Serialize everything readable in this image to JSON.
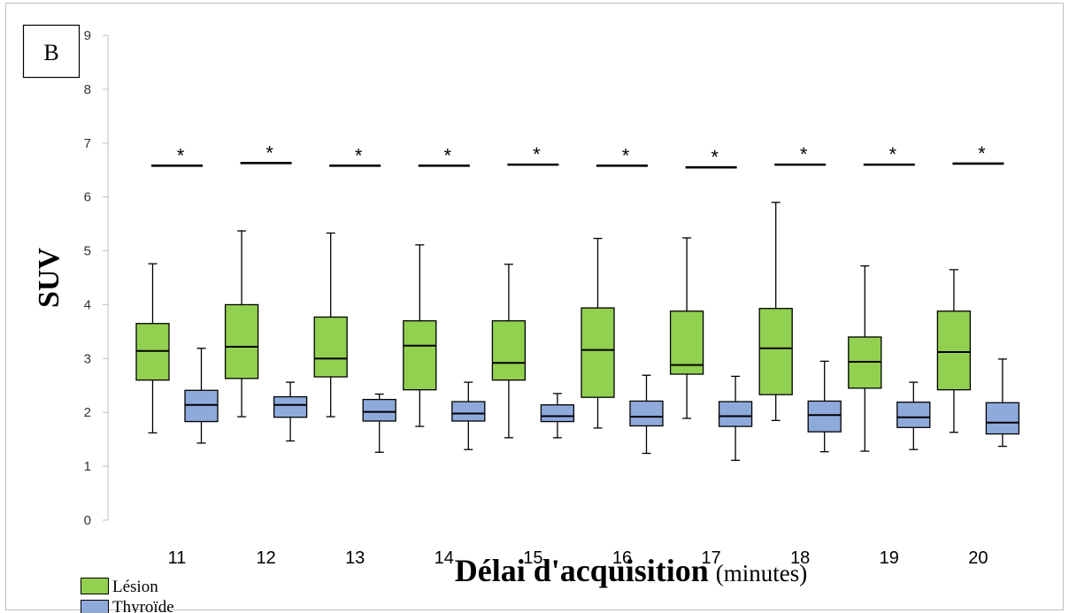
{
  "panel_label": "B",
  "chart_data": {
    "type": "box",
    "xlabel": "Délai d'acquisition",
    "xlabel_unit": "(minutes)",
    "ylabel": "SUV",
    "ylim": [
      0,
      9
    ],
    "yticks": [
      "0",
      "1",
      "2",
      "3",
      "4",
      "5",
      "6",
      "7",
      "8",
      "9"
    ],
    "categories": [
      "11",
      "12",
      "13",
      "14",
      "15",
      "16",
      "17",
      "18",
      "19",
      "20"
    ],
    "significance_marker": "*",
    "significance_level": [
      6.58,
      6.63,
      6.58,
      6.58,
      6.6,
      6.58,
      6.55,
      6.6,
      6.6,
      6.62
    ],
    "legend_position": "bottom-left",
    "series": [
      {
        "name": "Lésion",
        "color": "#92d050",
        "boxes": [
          {
            "min": 1.62,
            "q1": 2.6,
            "median": 3.14,
            "q3": 3.65,
            "max": 4.76
          },
          {
            "min": 1.92,
            "q1": 2.63,
            "median": 3.22,
            "q3": 4.0,
            "max": 5.37
          },
          {
            "min": 1.92,
            "q1": 2.66,
            "median": 3.0,
            "q3": 3.77,
            "max": 5.33
          },
          {
            "min": 1.74,
            "q1": 2.42,
            "median": 3.24,
            "q3": 3.7,
            "max": 5.11
          },
          {
            "min": 1.53,
            "q1": 2.6,
            "median": 2.92,
            "q3": 3.7,
            "max": 4.75
          },
          {
            "min": 1.71,
            "q1": 2.28,
            "median": 3.16,
            "q3": 3.94,
            "max": 5.23
          },
          {
            "min": 1.89,
            "q1": 2.71,
            "median": 2.88,
            "q3": 3.88,
            "max": 5.24
          },
          {
            "min": 1.85,
            "q1": 2.33,
            "median": 3.19,
            "q3": 3.93,
            "max": 5.9
          },
          {
            "min": 1.28,
            "q1": 2.45,
            "median": 2.94,
            "q3": 3.4,
            "max": 4.72
          },
          {
            "min": 1.63,
            "q1": 2.42,
            "median": 3.12,
            "q3": 3.88,
            "max": 4.65
          }
        ]
      },
      {
        "name": "Thyroïde",
        "color": "#8eaadb",
        "boxes": [
          {
            "min": 1.43,
            "q1": 1.83,
            "median": 2.14,
            "q3": 2.41,
            "max": 3.19
          },
          {
            "min": 1.47,
            "q1": 1.91,
            "median": 2.14,
            "q3": 2.29,
            "max": 2.56
          },
          {
            "min": 1.26,
            "q1": 1.84,
            "median": 2.01,
            "q3": 2.24,
            "max": 2.34
          },
          {
            "min": 1.31,
            "q1": 1.84,
            "median": 1.98,
            "q3": 2.2,
            "max": 2.56
          },
          {
            "min": 1.53,
            "q1": 1.83,
            "median": 1.93,
            "q3": 2.14,
            "max": 2.35
          },
          {
            "min": 1.24,
            "q1": 1.75,
            "median": 1.92,
            "q3": 2.21,
            "max": 2.69
          },
          {
            "min": 1.11,
            "q1": 1.74,
            "median": 1.93,
            "q3": 2.2,
            "max": 2.67
          },
          {
            "min": 1.27,
            "q1": 1.64,
            "median": 1.95,
            "q3": 2.21,
            "max": 2.95
          },
          {
            "min": 1.31,
            "q1": 1.72,
            "median": 1.91,
            "q3": 2.19,
            "max": 2.56
          },
          {
            "min": 1.37,
            "q1": 1.6,
            "median": 1.81,
            "q3": 2.18,
            "max": 2.99
          }
        ]
      }
    ]
  }
}
